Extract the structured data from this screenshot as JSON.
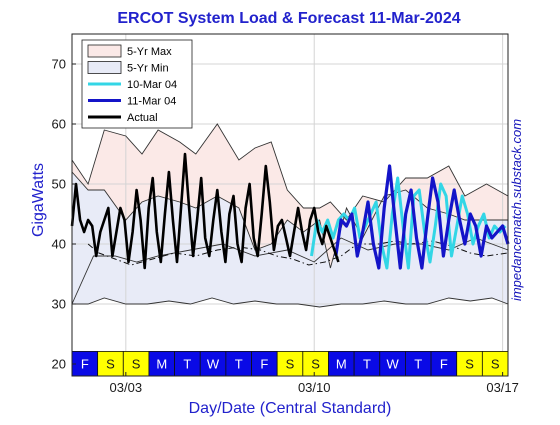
{
  "chart_data": {
    "type": "line",
    "title": "ERCOT System Load & Forecast 11-Mar-2024",
    "xlabel": "Day/Date (Central Standard)",
    "ylabel": "GigaWatts",
    "side_label": "impedancematch.substack.com",
    "ylim": [
      18,
      75
    ],
    "yticks": [
      20,
      30,
      40,
      50,
      60,
      70
    ],
    "xlim": [
      0,
      16.2
    ],
    "date_ticks": [
      {
        "x": 2,
        "label": "03/03"
      },
      {
        "x": 9,
        "label": "03/10"
      },
      {
        "x": 16,
        "label": "03/17"
      }
    ],
    "day_strip": [
      {
        "label": "F",
        "type": "weekday"
      },
      {
        "label": "S",
        "type": "weekend"
      },
      {
        "label": "S",
        "type": "weekend"
      },
      {
        "label": "M",
        "type": "weekday"
      },
      {
        "label": "T",
        "type": "weekday"
      },
      {
        "label": "W",
        "type": "weekday"
      },
      {
        "label": "T",
        "type": "weekday"
      },
      {
        "label": "F",
        "type": "weekday"
      },
      {
        "label": "S",
        "type": "weekend"
      },
      {
        "label": "S",
        "type": "weekend"
      },
      {
        "label": "M",
        "type": "weekday"
      },
      {
        "label": "T",
        "type": "weekday"
      },
      {
        "label": "W",
        "type": "weekday"
      },
      {
        "label": "T",
        "type": "weekday"
      },
      {
        "label": "F",
        "type": "weekday"
      },
      {
        "label": "S",
        "type": "weekend"
      },
      {
        "label": "S",
        "type": "weekend"
      }
    ],
    "legend": [
      {
        "label": "5-Yr Max",
        "kind": "patch",
        "fill": "#fbe9e7"
      },
      {
        "label": "5-Yr Min",
        "kind": "patch",
        "fill": "#e8ebf7"
      },
      {
        "label": "10-Mar 04",
        "kind": "line",
        "color": "#33d6e6"
      },
      {
        "label": "11-Mar 04",
        "kind": "line",
        "color": "#1414c8"
      },
      {
        "label": "Actual",
        "kind": "line",
        "color": "#000000"
      }
    ],
    "series": [
      {
        "key": "max5",
        "x": [
          0,
          0.6,
          1.2,
          2,
          2.6,
          3.2,
          4,
          4.6,
          5.4,
          6.2,
          6.8,
          7.4,
          8,
          8.6,
          9.2,
          9.6,
          10.2,
          10.8,
          11.6,
          12.4,
          13.2,
          14,
          14.6,
          15.4,
          16.2
        ],
        "values": [
          54,
          50,
          59,
          58,
          55,
          59,
          57,
          55,
          60,
          54,
          56,
          57,
          49,
          46,
          46,
          47,
          44,
          48,
          47,
          51,
          51,
          53,
          48,
          50,
          48
        ]
      },
      {
        "key": "min5",
        "x": [
          0,
          0.6,
          1.2,
          2,
          2.8,
          3.6,
          4.4,
          5.2,
          6,
          6.8,
          7.6,
          8.4,
          9.2,
          10,
          10.8,
          11.6,
          12.4,
          13.2,
          14,
          14.8,
          15.6,
          16.2
        ],
        "values": [
          30,
          30,
          31,
          30,
          30,
          30.5,
          30,
          31,
          30,
          30.5,
          30,
          30,
          29.5,
          30,
          30,
          30.5,
          30,
          30,
          31,
          30.5,
          31,
          30
        ]
      },
      {
        "key": "thin_upper",
        "x": [
          0,
          0.6,
          1.2,
          2,
          2.6,
          3.2,
          4,
          4.6,
          5.4,
          6.2,
          6.8,
          7.4,
          8,
          8.6,
          9.2,
          9.6,
          10.2,
          10.8,
          11.6,
          12.4,
          13.2,
          14,
          14.6,
          15.4,
          16.2
        ],
        "values": [
          52,
          49,
          49,
          44,
          47,
          48,
          47,
          46,
          48,
          46,
          39,
          40,
          44,
          42,
          44,
          36,
          46,
          41,
          48,
          49,
          46,
          45,
          44,
          44,
          44
        ]
      },
      {
        "key": "thin_lower",
        "x": [
          0,
          0.8,
          1.6,
          2.4,
          3.2,
          4.4,
          5.6,
          6.8,
          8,
          9,
          10,
          11,
          12,
          13,
          14,
          15,
          16.2
        ],
        "values": [
          30,
          38,
          38,
          37,
          38,
          39,
          40,
          38,
          39,
          37,
          41,
          39,
          40,
          40,
          39,
          41,
          39
        ]
      },
      {
        "key": "dashdot",
        "x": [
          0.6,
          1,
          1.6,
          2.2,
          3,
          3.8,
          4.6,
          5.4,
          6.2,
          7,
          7.6,
          8.2,
          8.8,
          9.4,
          10,
          10.6,
          11.4,
          12,
          12.6,
          13.4,
          14.2,
          14.8,
          15.4,
          16.2
        ],
        "values": [
          40,
          38.5,
          37.5,
          36.5,
          37.5,
          38.5,
          38,
          39,
          39.5,
          39,
          38,
          37.5,
          36.5,
          37,
          38,
          40,
          40,
          40.5,
          40,
          40.5,
          39.5,
          38.5,
          38,
          38.5
        ]
      },
      {
        "key": "fc_10mar",
        "name": "10-Mar 04",
        "x": [
          8.9,
          9.1,
          9.3,
          9.5,
          9.7,
          9.9,
          10.1,
          10.3,
          10.5,
          10.7,
          10.9,
          11.1,
          11.3,
          11.5,
          11.7,
          11.9,
          12.1,
          12.3,
          12.5,
          12.7,
          12.9,
          13.1,
          13.3,
          13.5,
          13.7,
          13.9,
          14.1,
          14.3,
          14.5,
          14.7,
          14.9,
          15.1,
          15.3,
          15.5,
          15.7,
          15.9,
          16.1
        ],
        "values": [
          38,
          44,
          42,
          44,
          41,
          44,
          45,
          44,
          46,
          41,
          43,
          45,
          47,
          40,
          36,
          45,
          51,
          43,
          36,
          48,
          49,
          42,
          37,
          43,
          50,
          48,
          38,
          43,
          48,
          45,
          40,
          43,
          45,
          41,
          43,
          42,
          43
        ]
      },
      {
        "key": "fc_11mar",
        "name": "11-Mar 04",
        "x": [
          9.8,
          10.0,
          10.2,
          10.4,
          10.6,
          10.8,
          11.0,
          11.2,
          11.4,
          11.6,
          11.8,
          12.0,
          12.2,
          12.4,
          12.6,
          12.8,
          13.0,
          13.2,
          13.4,
          13.6,
          13.8,
          14.0,
          14.2,
          14.4,
          14.6,
          14.8,
          15.0,
          15.2,
          15.4,
          15.6,
          15.8,
          16.0,
          16.2
        ],
        "values": [
          38,
          44,
          43,
          45,
          38,
          42,
          47,
          40,
          36,
          46,
          53,
          44,
          36,
          45,
          49,
          41,
          36,
          44,
          51,
          47,
          38,
          44,
          49,
          44,
          40,
          45,
          43,
          38,
          43,
          41,
          42,
          43,
          40
        ]
      },
      {
        "key": "actual",
        "name": "Actual",
        "x": [
          0.0,
          0.15,
          0.3,
          0.45,
          0.6,
          0.75,
          0.9,
          1.05,
          1.2,
          1.35,
          1.5,
          1.65,
          1.8,
          1.95,
          2.1,
          2.25,
          2.4,
          2.55,
          2.7,
          2.85,
          3.0,
          3.15,
          3.3,
          3.45,
          3.6,
          3.75,
          3.9,
          4.05,
          4.2,
          4.35,
          4.5,
          4.65,
          4.8,
          4.95,
          5.1,
          5.25,
          5.4,
          5.55,
          5.7,
          5.85,
          6.0,
          6.15,
          6.3,
          6.45,
          6.6,
          6.75,
          6.9,
          7.05,
          7.2,
          7.35,
          7.5,
          7.65,
          7.8,
          7.95,
          8.1,
          8.25,
          8.4,
          8.55,
          8.7,
          8.85,
          9.0,
          9.15,
          9.3,
          9.45,
          9.6,
          9.75,
          9.9
        ],
        "values": [
          43,
          50,
          44,
          42,
          44,
          43,
          38,
          42,
          44,
          46,
          38,
          42,
          46,
          44,
          37,
          42,
          49,
          44,
          36,
          46,
          51,
          42,
          37,
          45,
          52,
          44,
          37,
          46,
          55,
          46,
          38,
          44,
          51,
          41,
          38,
          44,
          49,
          42,
          37,
          45,
          48,
          40,
          37,
          46,
          50,
          41,
          38,
          45,
          53,
          47,
          39,
          43,
          44,
          41,
          38,
          42,
          46,
          42,
          39,
          44,
          46,
          42,
          40,
          43,
          41,
          39,
          37
        ]
      }
    ]
  }
}
